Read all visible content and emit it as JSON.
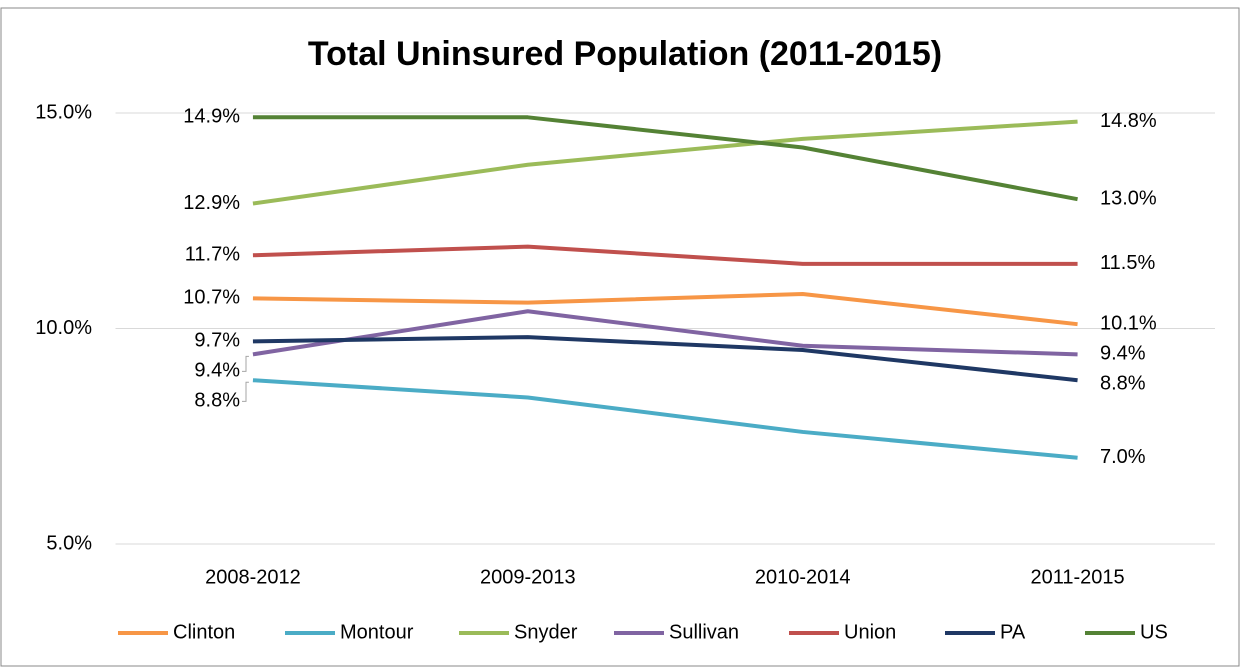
{
  "chart_data": {
    "type": "line",
    "title": "Total Uninsured Population (2011-2015)",
    "categories": [
      "2008-2012",
      "2009-2013",
      "2010-2014",
      "2011-2015"
    ],
    "ylim": [
      5,
      15
    ],
    "yticks": [
      {
        "value": 5,
        "label": "5.0%"
      },
      {
        "value": 10,
        "label": "10.0%"
      },
      {
        "value": 15,
        "label": "15.0%"
      }
    ],
    "grid": true,
    "legend": "bottom",
    "series": [
      {
        "name": "Clinton",
        "color": "#f79646",
        "values": [
          10.7,
          10.6,
          10.8,
          10.1
        ],
        "value_labels": [
          "10.7%",
          null,
          null,
          "10.1%"
        ]
      },
      {
        "name": "Montour",
        "color": "#4bacc6",
        "values": [
          8.8,
          8.4,
          7.6,
          7.0
        ],
        "value_labels": [
          "8.8%",
          null,
          null,
          "7.0%"
        ]
      },
      {
        "name": "Snyder",
        "color": "#9bbb59",
        "values": [
          12.9,
          13.8,
          14.4,
          14.8
        ],
        "value_labels": [
          "12.9%",
          null,
          null,
          "14.8%"
        ]
      },
      {
        "name": "Sullivan",
        "color": "#8064a2",
        "values": [
          9.4,
          10.4,
          9.6,
          9.4
        ],
        "value_labels": [
          "9.4%",
          null,
          null,
          "9.4%"
        ]
      },
      {
        "name": "Union",
        "color": "#c0504d",
        "values": [
          11.7,
          11.9,
          11.5,
          11.5
        ],
        "value_labels": [
          "11.7%",
          null,
          null,
          "11.5%"
        ]
      },
      {
        "name": "PA",
        "color": "#1f3864",
        "values": [
          9.7,
          9.8,
          9.5,
          8.8
        ],
        "value_labels": [
          "9.7%",
          null,
          null,
          "8.8%"
        ]
      },
      {
        "name": "US",
        "color": "#548235",
        "values": [
          14.9,
          14.9,
          14.2,
          13.0
        ],
        "value_labels": [
          "14.9%",
          null,
          null,
          "13.0%"
        ]
      }
    ]
  }
}
